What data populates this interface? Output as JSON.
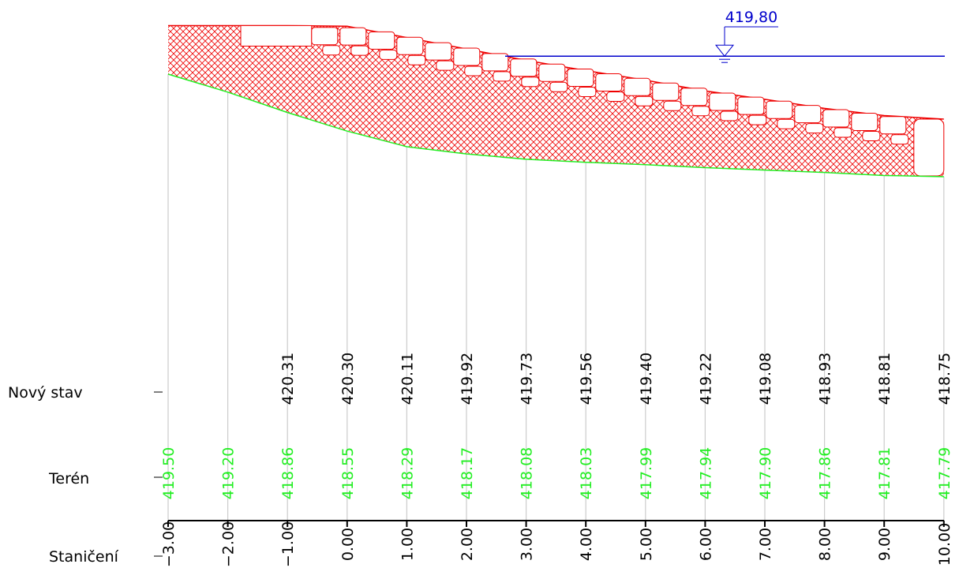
{
  "rows": {
    "new_state": "Nový stav",
    "terrain": "Terén",
    "stationing": "Staničení"
  },
  "water_level": "419,80",
  "stations": [
    "−3.00",
    "−2.00",
    "−1.00",
    "0.00",
    "1.00",
    "2.00",
    "3.00",
    "4.00",
    "5.00",
    "6.00",
    "7.00",
    "8.00",
    "9.00",
    "10.00"
  ],
  "new_state_values": [
    null,
    null,
    "420.31",
    "420.30",
    "420.11",
    "419.92",
    "419.73",
    "419.56",
    "419.40",
    "419.22",
    "419.08",
    "418.93",
    "418.81",
    "418.75"
  ],
  "terrain_values": [
    "419.50",
    "419.20",
    "418.86",
    "418.55",
    "418.29",
    "418.17",
    "418.08",
    "418.03",
    "417.99",
    "417.94",
    "417.90",
    "417.86",
    "417.81",
    "417.79"
  ]
}
